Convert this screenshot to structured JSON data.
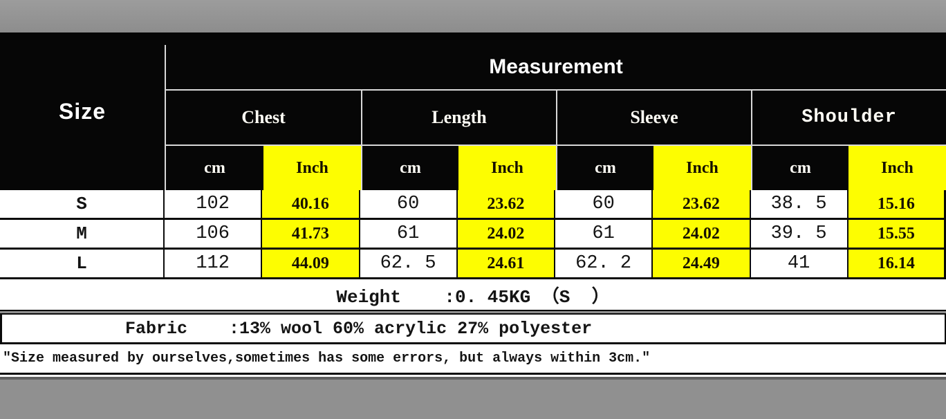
{
  "colors": {
    "background_gray": "#909090",
    "table_black": "#060606",
    "highlight_yellow": "#fdfd01",
    "grid_line_light": "#d9d9d9",
    "grid_line_dark": "#0b0b0b"
  },
  "table": {
    "size_header": "Size",
    "measurement_header": "Measurement",
    "group_headers": [
      "Chest",
      "Length",
      "Sleeve",
      "Shoulder"
    ],
    "unit_cm": "cm",
    "unit_inch": "Inch",
    "rows": [
      {
        "size": "S",
        "values": [
          "102",
          "40.16",
          "60",
          "23.62",
          "60",
          "23.62",
          "38. 5",
          "15.16"
        ]
      },
      {
        "size": "M",
        "values": [
          "106",
          "41.73",
          "61",
          "24.02",
          "61",
          "24.02",
          "39. 5",
          "15.55"
        ]
      },
      {
        "size": "L",
        "values": [
          "112",
          "44.09",
          "62. 5",
          "24.61",
          "62. 2",
          "24.49",
          "41",
          "16.14"
        ]
      }
    ]
  },
  "footer": {
    "weight": "Weight    :0. 45KG （S  ）",
    "fabric": "Fabric    :13% wool 60% acrylic 27% polyester",
    "note": "″Size measured by ourselves,sometimes has some errors, but always within 3cm.″"
  }
}
